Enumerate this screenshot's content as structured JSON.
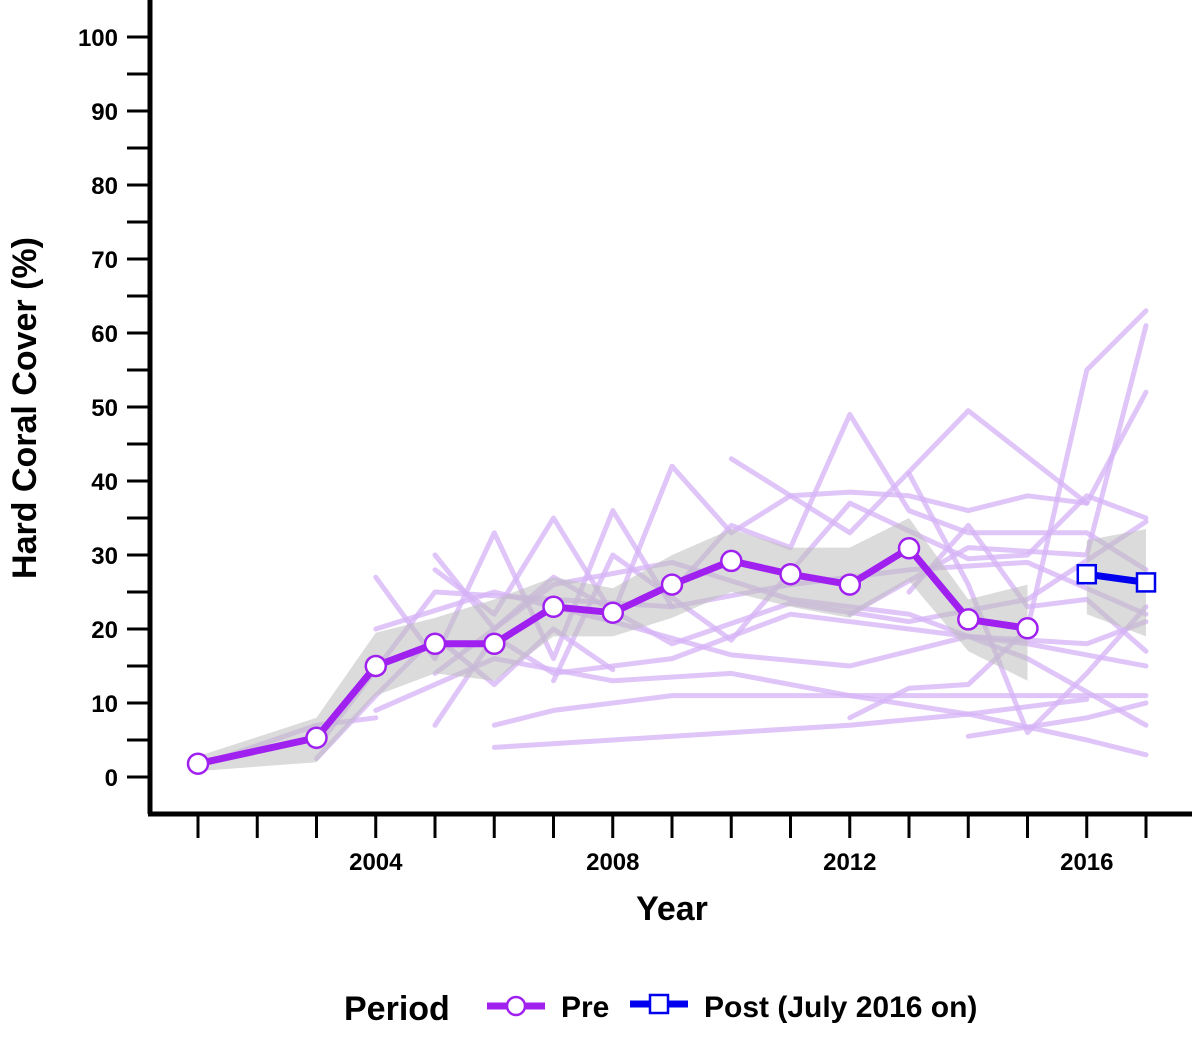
{
  "chart_data": {
    "type": "line",
    "xlabel": "Year",
    "ylabel": "Hard Coral Cover (%)",
    "xlim": [
      2000.2,
      2017.9
    ],
    "ylim": [
      -4.5,
      104
    ],
    "yticks": [
      0,
      10,
      20,
      30,
      40,
      50,
      60,
      70,
      80,
      90,
      100
    ],
    "ytick_labels": [
      "0",
      "10",
      "20",
      "30",
      "40",
      "50",
      "60",
      "70",
      "80",
      "90",
      "100"
    ],
    "xtick_major": [
      2004,
      2008,
      2012,
      2016
    ],
    "xtick_labels": [
      "2004",
      "2008",
      "2012",
      "2016"
    ],
    "xtick_minor": [
      2001,
      2002,
      2003,
      2004,
      2005,
      2006,
      2007,
      2008,
      2009,
      2010,
      2011,
      2012,
      2013,
      2014,
      2015,
      2016,
      2017
    ],
    "grid": false,
    "legend": {
      "title": "Period",
      "position": "bottom",
      "entries": [
        "Pre",
        "Post (July 2016 on)"
      ]
    },
    "colors": {
      "pre": "#A020F0",
      "post": "#0000EE",
      "site_lines": "#D6B3F5",
      "ribbon": "#BEBEBE"
    },
    "series": [
      {
        "name": "Pre",
        "x": [
          2001,
          2003,
          2004,
          2005,
          2006,
          2007,
          2008,
          2009,
          2010,
          2011,
          2012,
          2013,
          2014,
          2015
        ],
        "values": [
          1.8,
          5.3,
          15.0,
          18.0,
          18.0,
          23.0,
          22.2,
          26.0,
          29.2,
          27.4,
          26.0,
          30.9,
          21.3,
          20.1
        ]
      },
      {
        "name": "Post (July 2016 on)",
        "x": [
          2016,
          2017
        ],
        "values": [
          27.4,
          26.3
        ]
      }
    ],
    "ribbon": {
      "x": [
        2001,
        2003,
        2004,
        2005,
        2006,
        2007,
        2008,
        2009,
        2010,
        2011,
        2012,
        2013,
        2014,
        2015
      ],
      "lower": [
        0.8,
        2.0,
        11.0,
        14.0,
        13.0,
        19.0,
        19.0,
        21.5,
        25.0,
        23.0,
        21.5,
        26.5,
        17.0,
        13.0
      ],
      "upper": [
        2.8,
        8.0,
        19.5,
        21.5,
        24.0,
        27.0,
        25.5,
        30.0,
        33.5,
        31.0,
        31.0,
        35.0,
        24.0,
        26.0
      ]
    },
    "ribbon_post": {
      "x": [
        2016,
        2017
      ],
      "lower": [
        22.0,
        19.0
      ],
      "upper": [
        32.0,
        33.5
      ]
    },
    "site_lines": [
      {
        "x": [
          2001,
          2003,
          2004
        ],
        "values": [
          1.5,
          7.0,
          8.0
        ]
      },
      {
        "x": [
          2003,
          2004,
          2005,
          2006,
          2007,
          2008
        ],
        "values": [
          2.5,
          11.0,
          19.0,
          12.5,
          20.0,
          14.5
        ]
      },
      {
        "x": [
          2004,
          2005,
          2006,
          2007,
          2008,
          2009
        ],
        "values": [
          27.0,
          16.0,
          33.0,
          16.0,
          36.0,
          23.0
        ]
      },
      {
        "x": [
          2004,
          2006,
          2008,
          2010,
          2012,
          2014,
          2016,
          2017
        ],
        "values": [
          20.0,
          25.0,
          21.0,
          16.5,
          15.0,
          19.0,
          18.0,
          21.0
        ]
      },
      {
        "x": [
          2005,
          2006,
          2007,
          2008,
          2009,
          2010,
          2011,
          2012,
          2013,
          2014,
          2015,
          2016
        ],
        "values": [
          28.0,
          22.0,
          35.0,
          22.0,
          42.0,
          33.0,
          38.0,
          38.5,
          38.0,
          36.0,
          38.0,
          37.0
        ]
      },
      {
        "x": [
          2005,
          2006,
          2007,
          2009,
          2011,
          2013,
          2015,
          2017
        ],
        "values": [
          30.0,
          20.0,
          27.0,
          18.0,
          23.5,
          21.0,
          24.0,
          34.5
        ]
      },
      {
        "x": [
          2004,
          2006,
          2008,
          2010,
          2012,
          2014,
          2016
        ],
        "values": [
          9.0,
          16.0,
          13.0,
          14.0,
          11.0,
          8.5,
          10.5
        ]
      },
      {
        "x": [
          2005,
          2006,
          2007,
          2009,
          2011,
          2013,
          2015,
          2017
        ],
        "values": [
          7.0,
          19.0,
          14.0,
          16.0,
          22.0,
          20.0,
          18.0,
          15.0
        ]
      },
      {
        "x": [
          2006,
          2008,
          2010,
          2012,
          2014,
          2016,
          2017
        ],
        "values": [
          4.0,
          5.0,
          6.0,
          7.0,
          8.5,
          5.0,
          3.0
        ]
      },
      {
        "x": [
          2006,
          2007,
          2009,
          2011,
          2013,
          2015,
          2017
        ],
        "values": [
          7.0,
          9.0,
          11.0,
          11.0,
          11.0,
          11.0,
          11.0
        ]
      },
      {
        "x": [
          2007,
          2008,
          2010,
          2012,
          2014,
          2015,
          2016,
          2017
        ],
        "values": [
          13.0,
          30.0,
          18.5,
          37.0,
          29.5,
          30.0,
          38.0,
          35.0
        ]
      },
      {
        "x": [
          2009,
          2010,
          2011,
          2012,
          2013,
          2014,
          2016,
          2017
        ],
        "values": [
          25.0,
          34.0,
          31.0,
          49.0,
          36.0,
          33.0,
          33.0,
          28.0
        ]
      },
      {
        "x": [
          2010,
          2012,
          2014,
          2016,
          2017
        ],
        "values": [
          43.0,
          33.0,
          49.5,
          37.0,
          52.0
        ]
      },
      {
        "x": [
          2012,
          2013,
          2014,
          2015,
          2016,
          2017
        ],
        "values": [
          8.0,
          12.0,
          12.5,
          20.0,
          55.0,
          63.0
        ]
      },
      {
        "x": [
          2012,
          2014,
          2016,
          2017
        ],
        "values": [
          22.0,
          31.0,
          30.0,
          61.0
        ]
      },
      {
        "x": [
          2013,
          2014,
          2015,
          2016,
          2017
        ],
        "values": [
          41.0,
          26.0,
          6.0,
          14.0,
          23.0
        ]
      },
      {
        "x": [
          2014,
          2016,
          2017
        ],
        "values": [
          5.5,
          8.0,
          10.0
        ]
      },
      {
        "x": [
          2013,
          2014,
          2015,
          2016,
          2017
        ],
        "values": [
          25.0,
          34.0,
          23.0,
          24.0,
          17.0
        ]
      },
      {
        "x": [
          2003,
          2005,
          2007,
          2009,
          2011,
          2013,
          2015,
          2017
        ],
        "values": [
          4.0,
          25.0,
          24.0,
          23.0,
          26.0,
          28.0,
          29.0,
          22.0
        ]
      },
      {
        "x": [
          2005,
          2007,
          2009,
          2011,
          2013,
          2015,
          2017
        ],
        "values": [
          14.0,
          26.0,
          29.0,
          24.0,
          22.0,
          16.0,
          7.0
        ]
      }
    ]
  }
}
